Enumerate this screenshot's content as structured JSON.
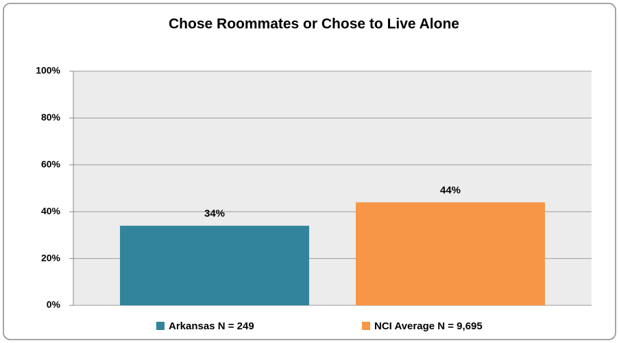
{
  "chart_data": {
    "type": "bar",
    "title": "Chose Roommates or Chose to Live Alone",
    "series": [
      {
        "name": "Arkansas N = 249",
        "color": "#31849b",
        "values": [
          34
        ],
        "value_labels": [
          "34%"
        ]
      },
      {
        "name": "NCI Average N = 9,695",
        "color": "#f79646",
        "values": [
          44
        ],
        "value_labels": [
          "44%"
        ]
      }
    ],
    "ylim": [
      0,
      100
    ],
    "yticks": [
      {
        "value": 0,
        "label": "0%"
      },
      {
        "value": 20,
        "label": "20%"
      },
      {
        "value": 40,
        "label": "40%"
      },
      {
        "value": 60,
        "label": "60%"
      },
      {
        "value": 80,
        "label": "80%"
      },
      {
        "value": 100,
        "label": "100%"
      }
    ],
    "grid": true,
    "legend": "bottom"
  }
}
